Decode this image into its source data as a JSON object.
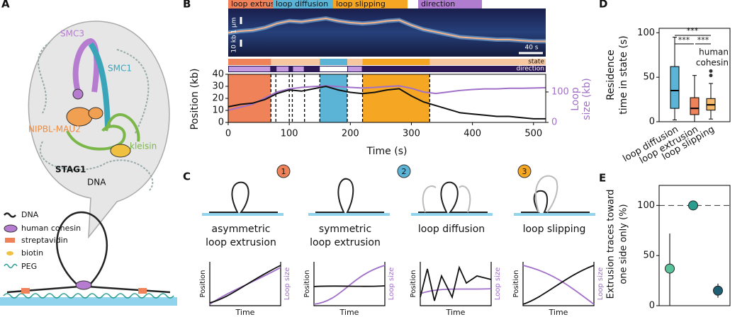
{
  "A": {
    "letter": "A",
    "parts": {
      "smc3": "SMC3",
      "smc1": "SMC1",
      "nipbl": "NIPBL-MAU2",
      "kleisin": "kleisin",
      "stag1": "STAG1",
      "dna": "DNA"
    },
    "legend": [
      "DNA",
      "human cohesin",
      "streptavidin",
      "biotin",
      "PEG"
    ]
  },
  "B": {
    "letter": "B",
    "legend": [
      "loop extrusion",
      "loop diffusion",
      "loop slipping",
      "direction"
    ],
    "kymo_scale": [
      "1 μm",
      "10 kb",
      "40 s"
    ],
    "bar_labels": [
      "state",
      "direction"
    ],
    "ylabel": "Position (kb)",
    "y2label": [
      "Loop",
      "size (kb)"
    ],
    "xlabel": "Time (s)",
    "xlim": [
      0,
      520
    ],
    "xticks": [
      0,
      100,
      200,
      300,
      400,
      500
    ],
    "ylim": [
      0,
      40
    ],
    "yticks": [
      0,
      10,
      20,
      30,
      40
    ],
    "y2lim": [
      0,
      158
    ],
    "y2ticks": [
      0,
      100
    ],
    "regions": [
      {
        "state": "loop extrusion",
        "start": 0,
        "end": 70
      },
      {
        "state": "loop diffusion",
        "start": 150,
        "end": 195
      },
      {
        "state": "loop slipping",
        "start": 220,
        "end": 330
      }
    ],
    "boundaries": [
      70,
      78,
      100,
      105,
      125,
      150,
      195,
      220,
      330
    ],
    "time": [
      0,
      20,
      40,
      60,
      80,
      100,
      120,
      140,
      160,
      180,
      200,
      220,
      240,
      260,
      280,
      300,
      320,
      340,
      360,
      380,
      400,
      420,
      440,
      460,
      480,
      500,
      520
    ],
    "position": [
      13,
      15,
      16,
      19,
      24,
      27,
      26,
      28,
      30,
      27,
      25,
      24,
      25,
      27,
      28,
      22,
      17,
      14,
      11,
      8,
      7,
      6,
      5,
      5,
      4,
      3,
      3
    ],
    "loop_size": [
      40,
      50,
      60,
      80,
      100,
      110,
      115,
      118,
      120,
      118,
      115,
      113,
      115,
      118,
      120,
      112,
      100,
      95,
      100,
      105,
      108,
      110,
      110,
      112,
      112,
      113,
      114
    ]
  },
  "C": {
    "letter": "C",
    "badges": [
      "1",
      "2",
      "3"
    ],
    "cards": [
      {
        "label": [
          "asymmetric",
          "loop extrusion"
        ],
        "ylabel": "Position",
        "y2label": "Loop size",
        "xlabel": "Time"
      },
      {
        "label": [
          "symmetric",
          "loop extrusion"
        ],
        "ylabel": "Position",
        "y2label": "Loop size",
        "xlabel": "Time"
      },
      {
        "label": [
          "loop diffusion"
        ],
        "ylabel": "Position",
        "y2label": "Loop size",
        "xlabel": "Time"
      },
      {
        "label": [
          "loop slipping"
        ],
        "ylabel": "Position",
        "y2label": "Loop size",
        "xlabel": "Time"
      }
    ]
  },
  "D": {
    "letter": "D",
    "ylabel": [
      "Residence",
      "time in state (s)"
    ],
    "ylim": [
      0,
      105
    ],
    "yticks": [
      0,
      50,
      100
    ],
    "significance": [
      "***",
      "***",
      "***"
    ],
    "note": [
      "human",
      "cohesin"
    ],
    "boxes": [
      {
        "name": "loop diffusion",
        "color": "#5bb3d6",
        "whislo": 2,
        "q1": 15,
        "med": 35,
        "q3": 62,
        "whishi": 95,
        "fliers": []
      },
      {
        "name": "loop extrusion",
        "color": "#f0825a",
        "whislo": 0,
        "q1": 8,
        "med": 15,
        "q3": 27,
        "whishi": 52,
        "fliers": []
      },
      {
        "name": "loop slipping",
        "color": "#f5b76a",
        "whislo": 3,
        "q1": 13,
        "med": 19,
        "q3": 26,
        "whishi": 43,
        "fliers": [
          52,
          57
        ]
      }
    ]
  },
  "E": {
    "letter": "E",
    "ylabel": [
      "Extrusion traces toward",
      "one side only (%)"
    ],
    "ylim": [
      0,
      120
    ],
    "yticks": [
      0,
      50,
      100
    ],
    "reference": 100,
    "points": [
      {
        "color": "#5ac29a",
        "value": 37,
        "low": 0,
        "high": 72
      },
      {
        "color": "#2a9d8f",
        "value": 100,
        "low": 100,
        "high": 100
      },
      {
        "color": "#1e5f74",
        "value": 15,
        "low": 8,
        "high": 22
      }
    ]
  }
}
